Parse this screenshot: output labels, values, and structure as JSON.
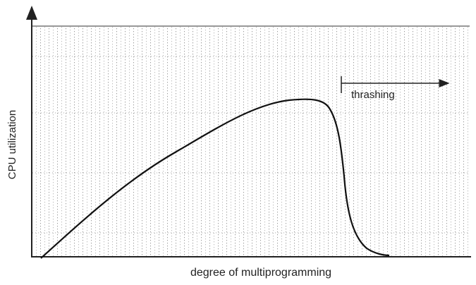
{
  "axes": {
    "y_label": "CPU utilization",
    "x_label": "degree of multiprogramming"
  },
  "annotation": {
    "label": "thrashing"
  }
}
